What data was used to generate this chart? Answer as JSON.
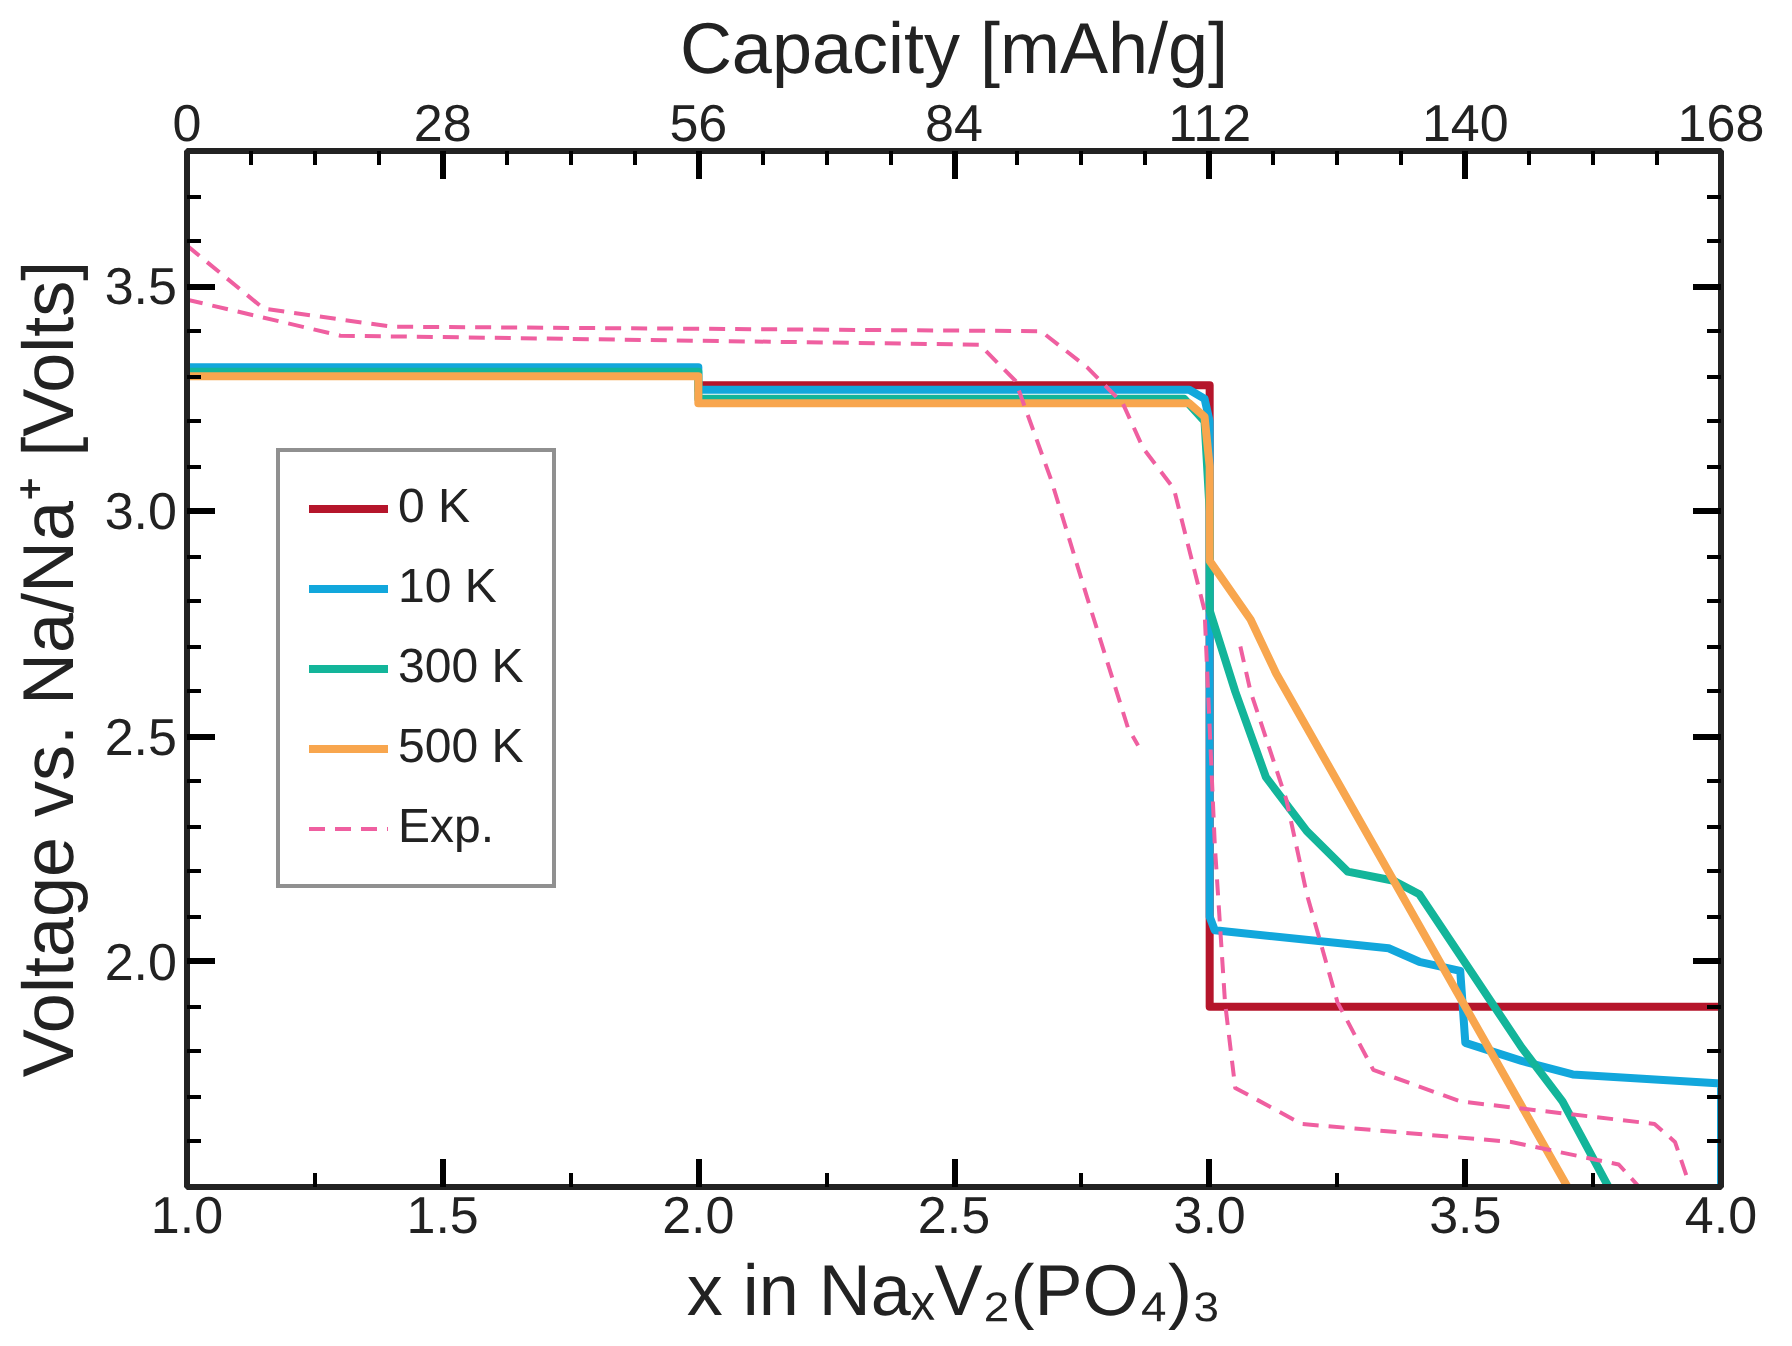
{
  "chart_data": {
    "type": "line",
    "xlabel": "x in NaₓV₂(PO₄)₃",
    "ylabel": "Voltage vs. Na/Na⁺ [Volts]",
    "x2label": "Capacity [mAh/g]",
    "xlim": [
      1.0,
      4.0
    ],
    "ylim": [
      1.5,
      3.8
    ],
    "x2lim": [
      0,
      168
    ],
    "xticks": [
      {
        "value": 1.0,
        "label": "1.0"
      },
      {
        "value": 1.25,
        "label": null
      },
      {
        "value": 1.5,
        "label": "1.5"
      },
      {
        "value": 1.75,
        "label": null
      },
      {
        "value": 2.0,
        "label": "2.0"
      },
      {
        "value": 2.25,
        "label": null
      },
      {
        "value": 2.5,
        "label": "2.5"
      },
      {
        "value": 2.75,
        "label": null
      },
      {
        "value": 3.0,
        "label": "3.0"
      },
      {
        "value": 3.25,
        "label": null
      },
      {
        "value": 3.5,
        "label": "3.5"
      },
      {
        "value": 3.75,
        "label": null
      },
      {
        "value": 4.0,
        "label": "4.0"
      }
    ],
    "yticks": [
      {
        "value": 1.6,
        "label": null
      },
      {
        "value": 1.7,
        "label": null
      },
      {
        "value": 1.8,
        "label": null
      },
      {
        "value": 1.9,
        "label": null
      },
      {
        "value": 2.0,
        "label": "2.0"
      },
      {
        "value": 2.1,
        "label": null
      },
      {
        "value": 2.2,
        "label": null
      },
      {
        "value": 2.3,
        "label": null
      },
      {
        "value": 2.4,
        "label": null
      },
      {
        "value": 2.5,
        "label": "2.5"
      },
      {
        "value": 2.6,
        "label": null
      },
      {
        "value": 2.7,
        "label": null
      },
      {
        "value": 2.8,
        "label": null
      },
      {
        "value": 2.9,
        "label": null
      },
      {
        "value": 3.0,
        "label": "3.0"
      },
      {
        "value": 3.1,
        "label": null
      },
      {
        "value": 3.2,
        "label": null
      },
      {
        "value": 3.3,
        "label": null
      },
      {
        "value": 3.4,
        "label": null
      },
      {
        "value": 3.5,
        "label": "3.5"
      },
      {
        "value": 3.6,
        "label": null
      },
      {
        "value": 3.7,
        "label": null
      }
    ],
    "x2ticks": [
      0,
      {
        "value": 7,
        "label": null
      },
      {
        "value": 14,
        "label": null
      },
      {
        "value": 21,
        "label": null
      },
      28,
      {
        "value": 35,
        "label": null
      },
      {
        "value": 42,
        "label": null
      },
      {
        "value": 49,
        "label": null
      },
      56,
      {
        "value": 63,
        "label": null
      },
      {
        "value": 70,
        "label": null
      },
      {
        "value": 77,
        "label": null
      },
      84,
      {
        "value": 91,
        "label": null
      },
      {
        "value": 98,
        "label": null
      },
      {
        "value": 105,
        "label": null
      },
      112,
      {
        "value": 119,
        "label": null
      },
      {
        "value": 126,
        "label": null
      },
      {
        "value": 133,
        "label": null
      },
      140,
      {
        "value": 147,
        "label": null
      },
      {
        "value": 154,
        "label": null
      },
      {
        "value": 161,
        "label": null
      },
      168
    ],
    "grid": false,
    "legend": "left",
    "series": [
      {
        "name": "0 K",
        "color": "#b5152b",
        "line_style": "solid",
        "x": [
          2.0,
          3.0,
          3.0,
          4.0
        ],
        "values": [
          3.28,
          3.28,
          1.9,
          1.9
        ]
      },
      {
        "name": "10 K",
        "color": "#12a7dc",
        "line_style": "solid",
        "x": [
          1.0,
          2.0,
          2.0,
          2.96,
          2.99,
          3.0,
          3.0,
          3.01,
          3.35,
          3.41,
          3.49,
          3.5,
          3.61,
          3.71,
          4.0,
          4.0
        ],
        "values": [
          3.32,
          3.32,
          3.27,
          3.27,
          3.25,
          3.2,
          2.1,
          2.07,
          2.03,
          2.0,
          1.98,
          1.82,
          1.78,
          1.75,
          1.73,
          1.5
        ]
      },
      {
        "name": "300 K",
        "color": "#13b59a",
        "line_style": "solid",
        "x": [
          1.0,
          2.0,
          2.0,
          2.95,
          2.99,
          3.0,
          3.0,
          3.05,
          3.11,
          3.19,
          3.27,
          3.36,
          3.41,
          3.51,
          3.61,
          3.69,
          3.78
        ],
        "values": [
          3.31,
          3.31,
          3.25,
          3.25,
          3.2,
          3.0,
          2.78,
          2.6,
          2.41,
          2.29,
          2.2,
          2.18,
          2.15,
          1.98,
          1.81,
          1.69,
          1.5
        ]
      },
      {
        "name": "500 K",
        "color": "#f8a64e",
        "line_style": "solid",
        "x": [
          1.0,
          2.0,
          2.0,
          2.96,
          2.99,
          3.0,
          3.0,
          3.08,
          3.13,
          3.37,
          3.7
        ],
        "values": [
          3.3,
          3.3,
          3.24,
          3.24,
          3.21,
          3.1,
          2.89,
          2.76,
          2.64,
          2.16,
          1.5
        ]
      },
      {
        "name": "Exp.",
        "color": "#ef5fa0",
        "line_style": "dashed",
        "x": [
          1.0,
          1.15,
          1.4,
          2.67,
          2.76,
          2.83,
          2.87,
          2.93,
          2.99,
          3.01,
          3.03,
          3.05,
          3.18,
          3.59,
          3.8,
          3.84
        ],
        "values": [
          3.59,
          3.45,
          3.41,
          3.4,
          3.32,
          3.24,
          3.14,
          3.05,
          2.78,
          2.26,
          1.91,
          1.72,
          1.64,
          1.6,
          1.55,
          1.5
        ]
      },
      {
        "color": "#ef5fa0",
        "line_style": "dashed",
        "x": [
          1.0,
          1.3,
          2.55,
          2.62,
          2.69,
          2.76,
          2.84,
          2.86
        ],
        "values": [
          3.47,
          3.39,
          3.37,
          3.29,
          3.07,
          2.81,
          2.52,
          2.48
        ]
      },
      {
        "color": "#ef5fa0",
        "line_style": "dashed",
        "x": [
          3.06,
          3.08,
          3.15,
          3.19,
          3.25,
          3.32,
          3.49,
          3.87,
          3.91,
          3.94
        ],
        "values": [
          2.7,
          2.6,
          2.36,
          2.15,
          1.91,
          1.76,
          1.69,
          1.64,
          1.6,
          1.5
        ]
      }
    ]
  }
}
